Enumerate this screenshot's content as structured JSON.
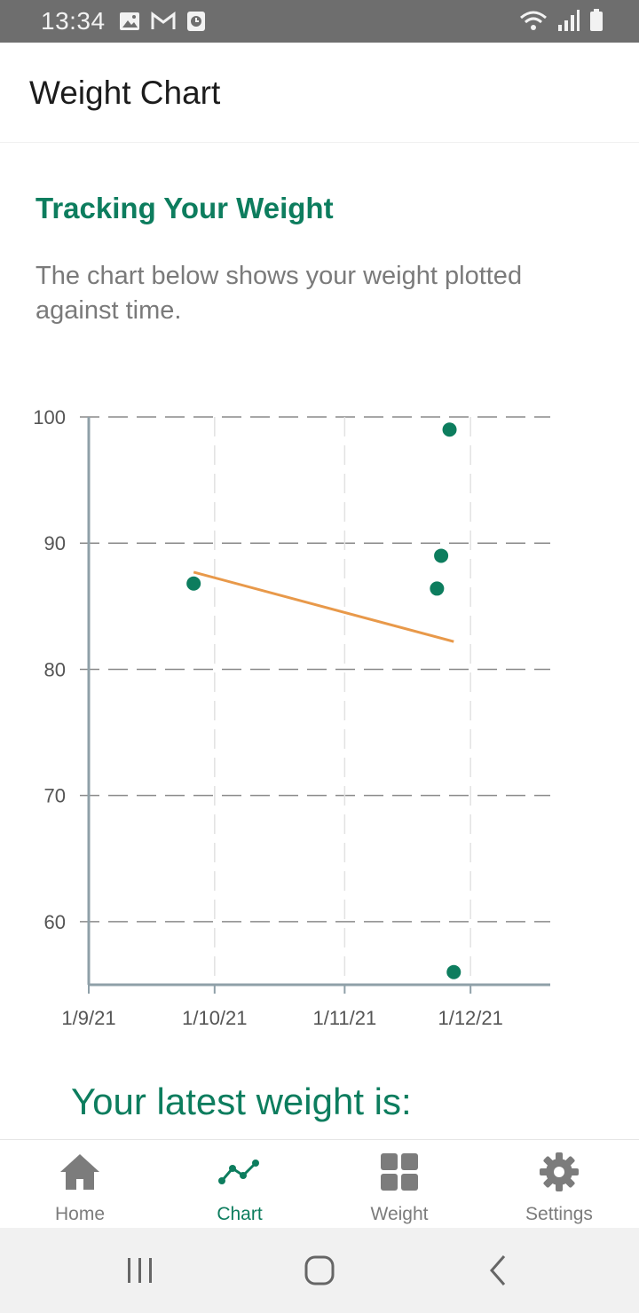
{
  "status_bar": {
    "time": "13:34",
    "left_icons": [
      "image-icon",
      "gmail-icon",
      "clock-app-icon"
    ],
    "right_icons": [
      "wifi-icon",
      "signal-icon",
      "battery-icon"
    ]
  },
  "app_bar": {
    "title": "Weight Chart"
  },
  "content": {
    "heading": "Tracking Your Weight",
    "description": "The chart below shows your weight plotted against time.",
    "latest_label": "Your latest weight is:"
  },
  "chart_data": {
    "type": "scatter",
    "x_ticks": [
      "1/9/21",
      "1/10/21",
      "1/11/21",
      "1/12/21"
    ],
    "y_ticks": [
      60,
      70,
      80,
      90,
      100
    ],
    "ylim": [
      55,
      100
    ],
    "x_range": [
      "2021-09-01",
      "2021-12-20"
    ],
    "points": [
      {
        "x": "2021-09-26",
        "y": 86.8
      },
      {
        "x": "2021-11-23",
        "y": 86.4
      },
      {
        "x": "2021-11-24",
        "y": 89.0
      },
      {
        "x": "2021-11-26",
        "y": 99.0
      },
      {
        "x": "2021-11-27",
        "y": 56.0
      }
    ],
    "trend_line": [
      {
        "x": "2021-09-26",
        "y": 87.7
      },
      {
        "x": "2021-11-27",
        "y": 82.2
      }
    ],
    "colors": {
      "points": "#0d7d5e",
      "trend": "#e8994a",
      "grid": "#8a8a8a",
      "axis": "#8fa0a8"
    },
    "grid": true
  },
  "bottom_nav": {
    "items": [
      {
        "label": "Home",
        "icon": "home-icon",
        "active": false
      },
      {
        "label": "Chart",
        "icon": "chart-icon",
        "active": true
      },
      {
        "label": "Weight",
        "icon": "grid-icon",
        "active": false
      },
      {
        "label": "Settings",
        "icon": "gear-icon",
        "active": false
      }
    ]
  },
  "colors": {
    "accent": "#0d7d5e",
    "inactive": "#7c7c7c"
  }
}
